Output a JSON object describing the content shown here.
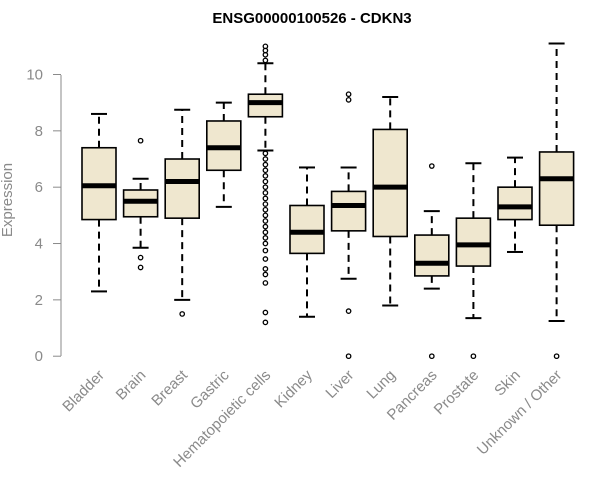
{
  "chart_data": {
    "type": "boxplot",
    "title": "ENSG00000100526 - CDKN3",
    "xlabel": "",
    "ylabel": "Expression",
    "ylim": [
      0,
      11
    ],
    "yticks": [
      0,
      2,
      4,
      6,
      8,
      10
    ],
    "grid": false,
    "legend": "none",
    "box_fill": "#efe7cf",
    "categories": [
      "Bladder",
      "Brain",
      "Breast",
      "Gastric",
      "Hematopoietic cells",
      "Kidney",
      "Liver",
      "Lung",
      "Pancreas",
      "Prostate",
      "Skin",
      "Unknown / Other"
    ],
    "boxes": [
      {
        "category": "Bladder",
        "whisker_low": 2.3,
        "q1": 4.85,
        "median": 6.05,
        "q3": 7.4,
        "whisker_high": 8.6,
        "outliers": []
      },
      {
        "category": "Brain",
        "whisker_low": 3.85,
        "q1": 4.95,
        "median": 5.5,
        "q3": 5.9,
        "whisker_high": 6.3,
        "outliers": [
          3.15,
          3.5,
          7.65
        ]
      },
      {
        "category": "Breast",
        "whisker_low": 2.0,
        "q1": 4.9,
        "median": 6.2,
        "q3": 7.0,
        "whisker_high": 8.75,
        "outliers": [
          1.5
        ]
      },
      {
        "category": "Gastric",
        "whisker_low": 5.3,
        "q1": 6.6,
        "median": 7.4,
        "q3": 8.35,
        "whisker_high": 9.0,
        "outliers": []
      },
      {
        "category": "Hematopoietic cells",
        "whisker_low": 7.3,
        "q1": 8.5,
        "median": 9.0,
        "q3": 9.3,
        "whisker_high": 10.4,
        "outliers": [
          1.2,
          1.55,
          2.6,
          2.9,
          3.1,
          3.45,
          3.75,
          4.0,
          4.2,
          4.4,
          4.6,
          4.8,
          5.0,
          5.2,
          5.4,
          5.6,
          5.8,
          6.0,
          6.2,
          6.4,
          6.6,
          6.8,
          7.0,
          7.2,
          10.5,
          10.7,
          10.85,
          11.0
        ]
      },
      {
        "category": "Kidney",
        "whisker_low": 1.4,
        "q1": 3.65,
        "median": 4.4,
        "q3": 5.35,
        "whisker_high": 6.7,
        "outliers": []
      },
      {
        "category": "Liver",
        "whisker_low": 2.75,
        "q1": 4.45,
        "median": 5.35,
        "q3": 5.85,
        "whisker_high": 6.7,
        "outliers": [
          0.0,
          1.6,
          9.1,
          9.3
        ]
      },
      {
        "category": "Lung",
        "whisker_low": 1.8,
        "q1": 4.25,
        "median": 6.0,
        "q3": 8.05,
        "whisker_high": 9.2,
        "outliers": []
      },
      {
        "category": "Pancreas",
        "whisker_low": 2.4,
        "q1": 2.85,
        "median": 3.3,
        "q3": 4.3,
        "whisker_high": 5.15,
        "outliers": [
          0.0,
          6.75
        ]
      },
      {
        "category": "Prostate",
        "whisker_low": 1.35,
        "q1": 3.2,
        "median": 3.95,
        "q3": 4.9,
        "whisker_high": 6.85,
        "outliers": [
          0.0
        ]
      },
      {
        "category": "Skin",
        "whisker_low": 3.7,
        "q1": 4.85,
        "median": 5.3,
        "q3": 6.0,
        "whisker_high": 7.05,
        "outliers": []
      },
      {
        "category": "Unknown / Other",
        "whisker_low": 1.25,
        "q1": 4.65,
        "median": 6.3,
        "q3": 7.25,
        "whisker_high": 11.1,
        "outliers": [
          0.0
        ]
      }
    ]
  }
}
